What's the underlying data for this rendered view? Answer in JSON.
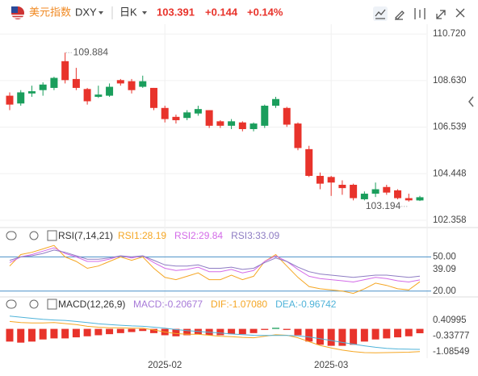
{
  "header": {
    "name": "美元指数",
    "symbol": "DXY",
    "period": "日K",
    "change": "+0.144",
    "change_pct": "+0.14%"
  },
  "chart_data": [
    {
      "type": "candlestick",
      "categories": [
        null,
        null,
        null,
        null,
        null,
        null,
        null,
        null,
        null,
        null,
        null,
        null,
        null,
        null,
        "2025-02",
        null,
        null,
        null,
        null,
        null,
        null,
        null,
        null,
        null,
        null,
        null,
        null,
        null,
        null,
        "2025-03",
        null,
        null,
        null,
        null,
        null,
        null,
        null,
        null
      ],
      "open": [
        107.95,
        107.6,
        108.05,
        108.2,
        108.3,
        109.5,
        108.7,
        108.25,
        107.9,
        107.95,
        108.65,
        108.6,
        108.35,
        108.3,
        107.4,
        107.0,
        106.95,
        107.15,
        107.3,
        106.8,
        106.6,
        106.75,
        106.45,
        106.6,
        107.5,
        107.4,
        106.7,
        105.55,
        104.35,
        104.3,
        103.95,
        103.95,
        103.3,
        103.55,
        103.85,
        103.7,
        103.35,
        103.247
      ],
      "high": [
        108.1,
        108.2,
        108.4,
        108.55,
        108.8,
        109.884,
        109.2,
        108.3,
        108.4,
        108.5,
        108.7,
        108.7,
        108.85,
        108.3,
        107.5,
        107.1,
        107.3,
        107.5,
        107.3,
        106.85,
        106.9,
        106.8,
        106.75,
        107.55,
        107.9,
        107.45,
        106.75,
        105.7,
        104.5,
        104.35,
        104.15,
        104.0,
        103.65,
        104.05,
        103.95,
        103.75,
        103.55,
        103.45
      ],
      "low": [
        107.3,
        107.5,
        107.9,
        107.95,
        108.2,
        108.5,
        108.2,
        107.55,
        107.85,
        107.9,
        108.4,
        108.05,
        108.3,
        107.3,
        106.75,
        106.7,
        106.85,
        107.05,
        106.5,
        106.5,
        106.45,
        106.35,
        106.35,
        106.5,
        107.4,
        106.55,
        105.5,
        104.3,
        103.75,
        103.45,
        103.5,
        103.25,
        103.25,
        103.4,
        103.5,
        103.3,
        103.194,
        103.22
      ],
      "close": [
        107.55,
        108.1,
        108.15,
        108.45,
        108.75,
        108.65,
        108.3,
        107.7,
        108.0,
        108.35,
        108.5,
        108.2,
        108.6,
        107.4,
        106.9,
        106.85,
        107.2,
        107.35,
        106.6,
        106.6,
        106.8,
        106.45,
        106.7,
        107.5,
        107.8,
        106.65,
        105.6,
        104.35,
        104.0,
        104.05,
        103.8,
        103.35,
        103.55,
        103.75,
        103.6,
        103.35,
        103.25,
        103.391
      ],
      "up_color": "#1a9e5c",
      "down_color": "#e8332b",
      "ylim": [
        102.03,
        111.16
      ],
      "yticks": [
        {
          "value": 110.72,
          "label": "110.720"
        },
        {
          "value": 108.63,
          "label": "108.630"
        },
        106.539,
        104.448,
        102.358
      ],
      "grid": true
    },
    {
      "type": "line",
      "title": "RSI(7,14,21)",
      "series": [
        {
          "name": "RSI1:28.19",
          "color": "#f5a623",
          "values": [
            42,
            52,
            54,
            57,
            60,
            50,
            46,
            40,
            42,
            46,
            50,
            47,
            50,
            40,
            32,
            30,
            33,
            36,
            30,
            30,
            34,
            30,
            33,
            46,
            52,
            42,
            32,
            24,
            22,
            21,
            20,
            18,
            22,
            27,
            25,
            22,
            21,
            28.19
          ]
        },
        {
          "name": "RSI2:29.84",
          "color": "#d36be8",
          "values": [
            45,
            50,
            52,
            55,
            58,
            53,
            50,
            46,
            46,
            48,
            51,
            49,
            51,
            45,
            40,
            38,
            39,
            41,
            37,
            37,
            39,
            36,
            38,
            46,
            51,
            46,
            39,
            33,
            31,
            30,
            29,
            28,
            30,
            32,
            31,
            29,
            28,
            29.84
          ]
        },
        {
          "name": "RSI3:33.09",
          "color": "#8e7cc3",
          "values": [
            47,
            50,
            51,
            53,
            56,
            54,
            51,
            48,
            48,
            49,
            51,
            50,
            51,
            47,
            43,
            42,
            42,
            43,
            40,
            40,
            41,
            39,
            40,
            45,
            49,
            46,
            41,
            37,
            35,
            34,
            33,
            32,
            33,
            34,
            34,
            33,
            32,
            33.09
          ]
        }
      ],
      "ylim": [
        17,
        63
      ],
      "yticks": [
        {
          "value": 50,
          "label": "50.00"
        },
        39.09,
        {
          "value": 20,
          "label": "20.00"
        }
      ],
      "reference_color": "#4a90c8"
    },
    {
      "type": "macd",
      "title": "MACD(12,26,9)",
      "series": [
        {
          "name": "MACD:-0.20677",
          "color": "#a77ad8",
          "values": [
            -0.6,
            -0.65,
            -0.6,
            -0.5,
            -0.45,
            -0.45,
            -0.4,
            -0.35,
            -0.3,
            -0.25,
            -0.2,
            -0.15,
            -0.1,
            -0.2,
            -0.3,
            -0.35,
            -0.3,
            -0.25,
            -0.3,
            -0.3,
            -0.25,
            -0.25,
            -0.2,
            -0.05,
            0.05,
            -0.05,
            -0.3,
            -0.6,
            -0.75,
            -0.8,
            -0.8,
            -0.75,
            -0.6,
            -0.5,
            -0.45,
            -0.4,
            -0.35,
            -0.20677
          ]
        },
        {
          "name": "DIF:-1.07080",
          "color": "#f5a623",
          "values": [
            0.35,
            0.3,
            0.28,
            0.28,
            0.3,
            0.25,
            0.2,
            0.12,
            0.08,
            0.05,
            0.05,
            0.03,
            0.03,
            -0.05,
            -0.15,
            -0.22,
            -0.25,
            -0.25,
            -0.3,
            -0.35,
            -0.37,
            -0.4,
            -0.42,
            -0.35,
            -0.28,
            -0.3,
            -0.42,
            -0.6,
            -0.78,
            -0.9,
            -1.0,
            -1.07,
            -1.12,
            -1.13,
            -1.12,
            -1.11,
            -1.1,
            -1.0708
          ]
        },
        {
          "name": "DEA:-0.96742",
          "color": "#4fb3d9",
          "values": [
            0.6,
            0.55,
            0.5,
            0.45,
            0.42,
            0.4,
            0.35,
            0.3,
            0.24,
            0.2,
            0.17,
            0.14,
            0.12,
            0.08,
            0.03,
            -0.03,
            -0.08,
            -0.12,
            -0.16,
            -0.2,
            -0.24,
            -0.27,
            -0.3,
            -0.31,
            -0.31,
            -0.31,
            -0.33,
            -0.38,
            -0.46,
            -0.55,
            -0.64,
            -0.72,
            -0.8,
            -0.87,
            -0.92,
            -0.95,
            -0.96,
            -0.96742
          ]
        }
      ],
      "up_color": "#1a9e5c",
      "down_color": "#e8332b",
      "ylim": [
        -1.31,
        0.86
      ],
      "yticks": [
        0.40995,
        -0.33777,
        -1.08549
      ]
    }
  ]
}
